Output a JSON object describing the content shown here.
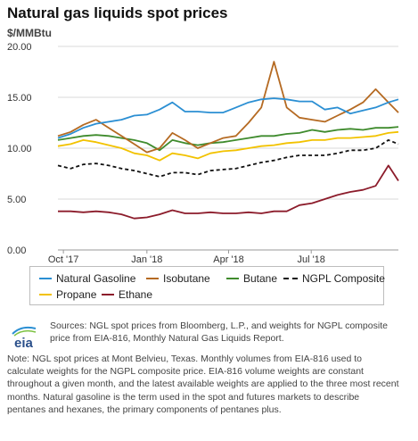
{
  "title": "Natural gas liquids spot prices",
  "unit": "$/MMBtu",
  "colors": {
    "natural_gasoline": "#2b8fd3",
    "isobutane": "#b56a22",
    "butane": "#3f8b2d",
    "ngpl": "#111111",
    "propane": "#f2c200",
    "ethane": "#8c1c2b",
    "grid": "#d9d9d9"
  },
  "chart_data": {
    "type": "line",
    "title": "Natural gas liquids spot prices",
    "ylabel": "$/MMBtu",
    "ylim": [
      0,
      20
    ],
    "yticks": [
      "0.00",
      "5.00",
      "10.00",
      "15.00",
      "20.00"
    ],
    "xlim": [
      "2017-09-25",
      "2018-10-05"
    ],
    "xticks": [
      {
        "date": "2017-10-01",
        "label": "Oct '17"
      },
      {
        "date": "2018-01-01",
        "label": "Jan '18"
      },
      {
        "date": "2018-04-01",
        "label": "Apr '18"
      },
      {
        "date": "2018-07-01",
        "label": "Jul '18"
      }
    ],
    "grid": true,
    "legend_position": "bottom",
    "x": [
      "2017-09-25",
      "2017-10-09",
      "2017-10-23",
      "2017-11-06",
      "2017-11-20",
      "2017-12-04",
      "2017-12-18",
      "2018-01-01",
      "2018-01-15",
      "2018-01-29",
      "2018-02-12",
      "2018-02-26",
      "2018-03-12",
      "2018-03-26",
      "2018-04-09",
      "2018-04-23",
      "2018-05-07",
      "2018-05-21",
      "2018-06-04",
      "2018-06-18",
      "2018-07-02",
      "2018-07-16",
      "2018-07-30",
      "2018-08-13",
      "2018-08-27",
      "2018-09-10",
      "2018-09-24",
      "2018-10-05"
    ],
    "series": [
      {
        "name": "Natural Gasoline",
        "style": "solid",
        "color_key": "natural_gasoline",
        "values": [
          11.0,
          11.4,
          12.0,
          12.4,
          12.6,
          12.8,
          13.2,
          13.3,
          13.8,
          14.5,
          13.6,
          13.6,
          13.5,
          13.5,
          14.0,
          14.5,
          14.8,
          14.9,
          14.8,
          14.6,
          14.6,
          13.8,
          14.0,
          13.4,
          13.7,
          14.0,
          14.5,
          14.8
        ]
      },
      {
        "name": "Isobutane",
        "style": "solid",
        "color_key": "isobutane",
        "values": [
          11.2,
          11.6,
          12.3,
          12.8,
          12.0,
          11.2,
          10.4,
          9.6,
          10.0,
          11.5,
          10.8,
          10.0,
          10.5,
          11.0,
          11.2,
          12.5,
          14.0,
          18.5,
          14.0,
          13.0,
          12.8,
          12.6,
          13.2,
          13.8,
          14.5,
          15.8,
          14.5,
          13.5
        ]
      },
      {
        "name": "Butane",
        "style": "solid",
        "color_key": "butane",
        "values": [
          10.8,
          11.0,
          11.2,
          11.3,
          11.2,
          11.0,
          10.8,
          10.5,
          9.8,
          10.8,
          10.5,
          10.3,
          10.5,
          10.6,
          10.8,
          11.0,
          11.2,
          11.2,
          11.4,
          11.5,
          11.8,
          11.6,
          11.8,
          11.9,
          11.8,
          12.0,
          12.0,
          12.1
        ]
      },
      {
        "name": "NGPL Composite",
        "style": "dashed",
        "color_key": "ngpl",
        "values": [
          8.3,
          8.0,
          8.4,
          8.5,
          8.3,
          8.0,
          7.8,
          7.5,
          7.2,
          7.6,
          7.6,
          7.4,
          7.8,
          7.9,
          8.0,
          8.3,
          8.6,
          8.8,
          9.1,
          9.3,
          9.3,
          9.3,
          9.5,
          9.8,
          9.8,
          10.0,
          10.8,
          10.4
        ]
      },
      {
        "name": "Propane",
        "style": "solid",
        "color_key": "propane",
        "values": [
          10.2,
          10.4,
          10.8,
          10.6,
          10.3,
          10.0,
          9.5,
          9.3,
          8.8,
          9.5,
          9.3,
          9.0,
          9.5,
          9.7,
          9.8,
          10.0,
          10.2,
          10.3,
          10.5,
          10.6,
          10.8,
          10.8,
          11.0,
          11.0,
          11.1,
          11.2,
          11.5,
          11.6
        ]
      },
      {
        "name": "Ethane",
        "style": "solid",
        "color_key": "ethane",
        "values": [
          3.8,
          3.8,
          3.7,
          3.8,
          3.7,
          3.5,
          3.1,
          3.2,
          3.5,
          3.9,
          3.6,
          3.6,
          3.7,
          3.6,
          3.6,
          3.7,
          3.6,
          3.8,
          3.8,
          4.4,
          4.6,
          5.0,
          5.4,
          5.7,
          5.9,
          6.3,
          8.3,
          6.8
        ]
      }
    ]
  },
  "source": "Sources: NGL spot prices from Bloomberg, L.P., and weights for NGPL composite price from EIA-816, Monthly Natural Gas Liquids Report.",
  "note": "Note: NGL spot prices at Mont Belvieu, Texas. Monthly volumes from EIA-816 used to calculate weights for the NGPL composite price. EIA-816 volume weights are constant throughout a given month, and the latest available weights are applied to the three most recent months. Natural gasoline is the term used in the spot and futures markets to describe pentanes and hexanes, the primary components of pentanes plus.",
  "logo_text": "eia"
}
